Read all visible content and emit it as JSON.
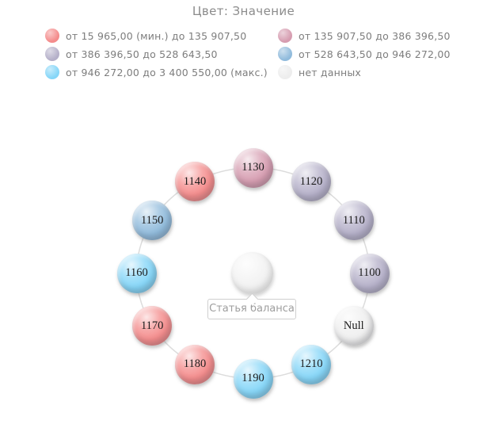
{
  "chart_data": {
    "type": "radial-node-chart",
    "title": "Цвет: Значение",
    "center_tooltip": "Статья баланса",
    "legend_position": "top",
    "value_thresholds": [
      15965.0,
      135907.5,
      386396.5,
      528643.5,
      946272.0,
      3400550.0
    ],
    "legend": {
      "items": [
        {
          "label": "от 15 965,00 (мин.) до 135 907,50",
          "color": "#f48b8b"
        },
        {
          "label": "от 135 907,50 до 386 396,50",
          "color": "#d69cb0"
        },
        {
          "label": "от 386 396,50 до 528 643,50",
          "color": "#b5b0c9"
        },
        {
          "label": "от 528 643,50 до 946 272,00",
          "color": "#90bbdc"
        },
        {
          "label": "от 946 272,00 до 3 400 550,00 (макс.)",
          "color": "#85d6f8"
        },
        {
          "label": "нет данных",
          "color": "#ededed"
        }
      ]
    },
    "nodes": [
      {
        "label": "1130",
        "angle_deg": 90,
        "color": "#d69cb0",
        "range": "135 907,50 – 386 396,50"
      },
      {
        "label": "1120",
        "angle_deg": 60,
        "color": "#b5b0c9",
        "range": "386 396,50 – 528 643,50"
      },
      {
        "label": "1110",
        "angle_deg": 30,
        "color": "#b5b0c9",
        "range": "386 396,50 – 528 643,50"
      },
      {
        "label": "1100",
        "angle_deg": 0,
        "color": "#b5b0c9",
        "range": "386 396,50 – 528 643,50"
      },
      {
        "label": "Null",
        "angle_deg": -30,
        "color": "#efefef",
        "range": "нет данных"
      },
      {
        "label": "1210",
        "angle_deg": -60,
        "color": "#85d6f8",
        "range": "946 272,00 – 3 400 550,00"
      },
      {
        "label": "1190",
        "angle_deg": -90,
        "color": "#85d6f8",
        "range": "946 272,00 – 3 400 550,00"
      },
      {
        "label": "1180",
        "angle_deg": -120,
        "color": "#f48b8b",
        "range": "15 965,00 – 135 907,50"
      },
      {
        "label": "1170",
        "angle_deg": -150,
        "color": "#f48b8b",
        "range": "15 965,00 – 135 907,50"
      },
      {
        "label": "1160",
        "angle_deg": 180,
        "color": "#85d6f8",
        "range": "946 272,00 – 3 400 550,00"
      },
      {
        "label": "1150",
        "angle_deg": 150,
        "color": "#90bbdc",
        "range": "528 643,50 – 946 272,00"
      },
      {
        "label": "1140",
        "angle_deg": 120,
        "color": "#f48b8b",
        "range": "15 965,00 – 135 907,50"
      }
    ]
  }
}
